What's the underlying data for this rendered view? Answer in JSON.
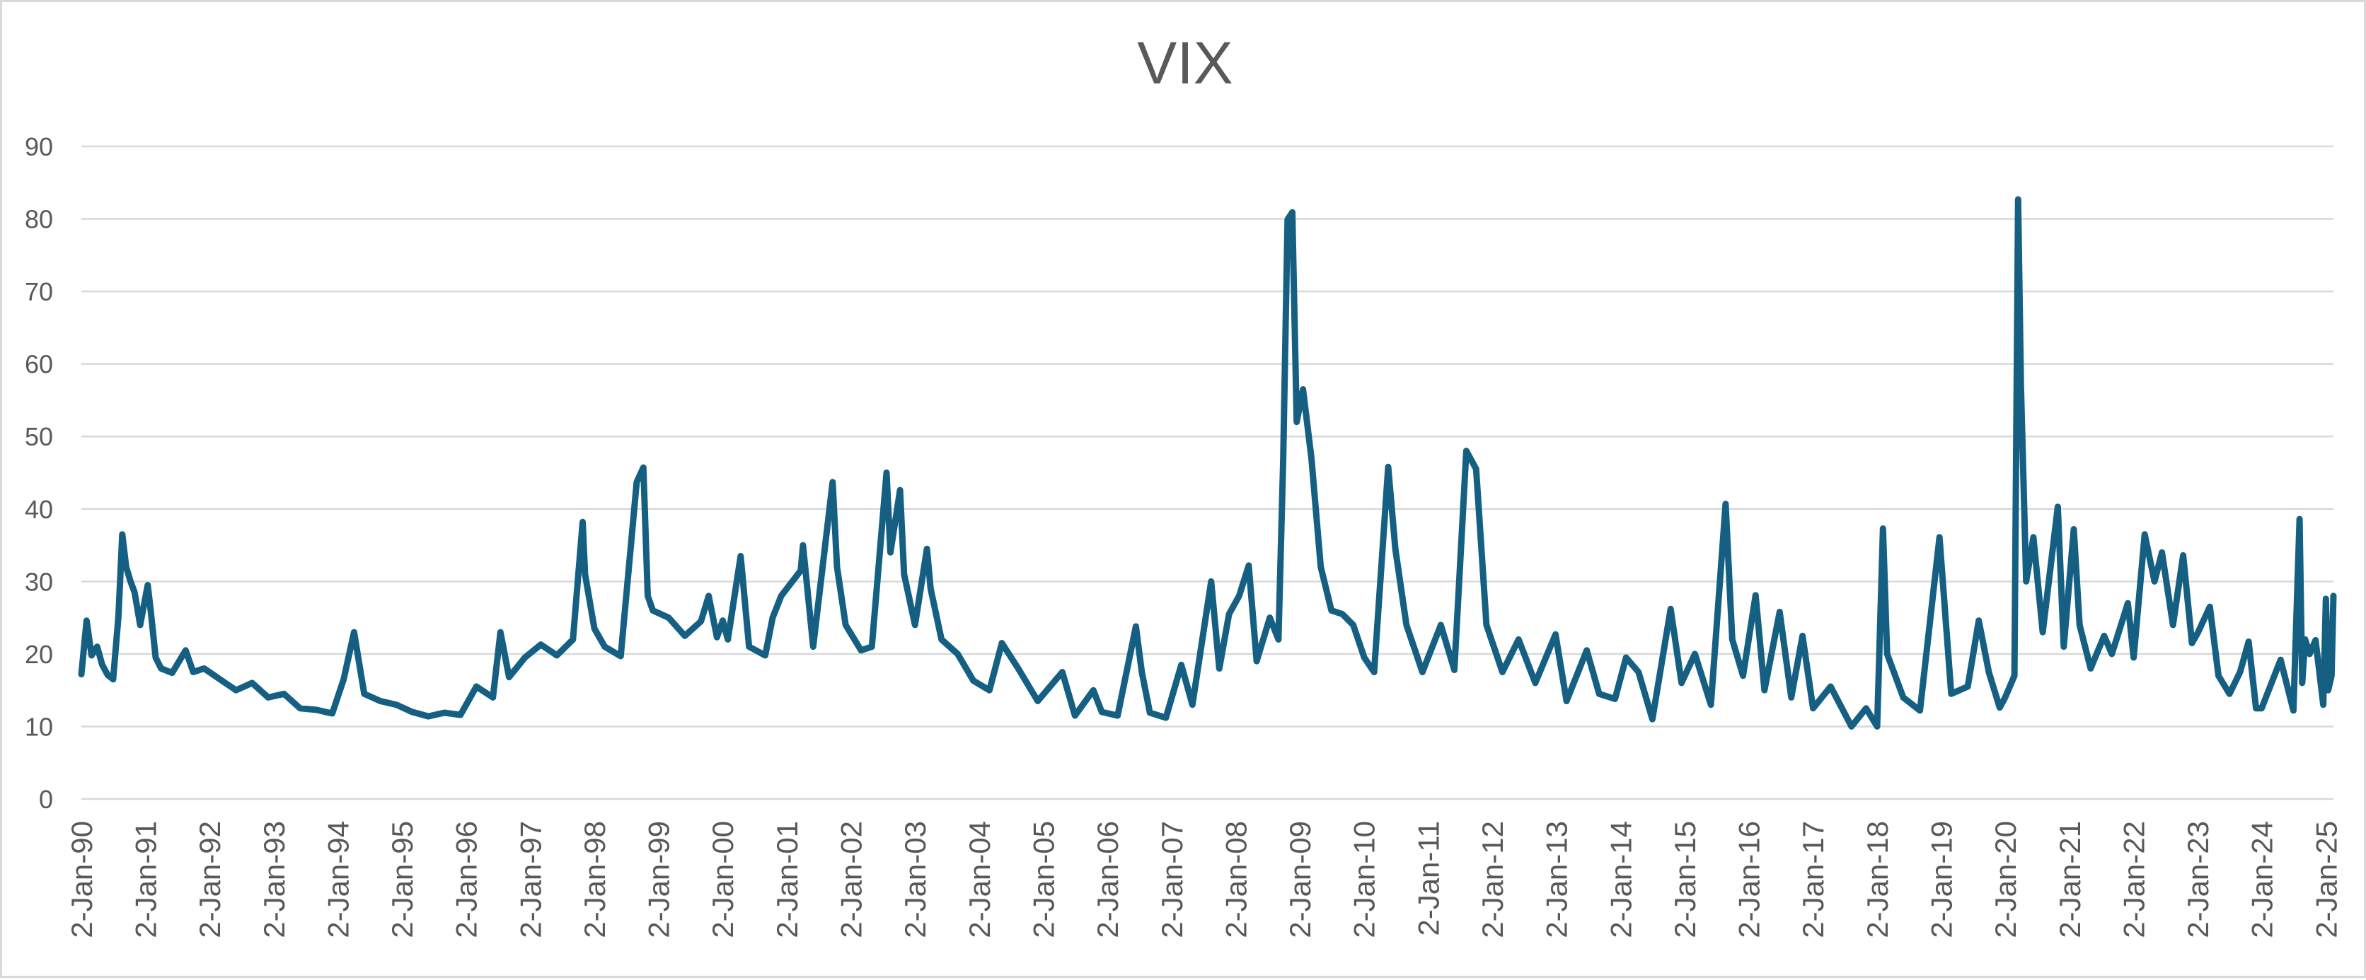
{
  "chart_data": {
    "type": "line",
    "title": "VIX",
    "xlabel": "",
    "ylabel": "",
    "ylim": [
      0,
      90
    ],
    "yticks": [
      0,
      10,
      20,
      30,
      40,
      50,
      60,
      70,
      80,
      90
    ],
    "grid": true,
    "legend": "none",
    "x_tick_labels": [
      "2-Jan-90",
      "2-Jan-91",
      "2-Jan-92",
      "2-Jan-93",
      "2-Jan-94",
      "2-Jan-95",
      "2-Jan-96",
      "2-Jan-97",
      "2-Jan-98",
      "2-Jan-99",
      "2-Jan-00",
      "2-Jan-01",
      "2-Jan-02",
      "2-Jan-03",
      "2-Jan-04",
      "2-Jan-05",
      "2-Jan-06",
      "2-Jan-07",
      "2-Jan-08",
      "2-Jan-09",
      "2-Jan-10",
      "2-Jan-11",
      "2-Jan-12",
      "2-Jan-13",
      "2-Jan-14",
      "2-Jan-15",
      "2-Jan-16",
      "2-Jan-17",
      "2-Jan-18",
      "2-Jan-19",
      "2-Jan-20",
      "2-Jan-21",
      "2-Jan-22",
      "2-Jan-23",
      "2-Jan-24",
      "2-Jan-25"
    ],
    "line_color": "#156082",
    "series": [
      {
        "x": [
          "1990-01-02",
          "1990-02-01",
          "1990-03-01",
          "1990-04-02",
          "1990-05-01",
          "1990-06-01",
          "1990-07-02",
          "1990-08-01",
          "1990-08-23",
          "1990-09-14",
          "1990-10-09",
          "1990-11-01",
          "1990-12-03",
          "1991-01-15",
          "1991-02-01",
          "1991-03-01",
          "1991-04-01",
          "1991-06-03",
          "1991-08-19",
          "1991-10-01",
          "1991-12-02",
          "1992-03-02",
          "1992-06-01",
          "1992-09-01",
          "1992-12-01",
          "1993-03-01",
          "1993-06-01",
          "1993-09-01",
          "1993-12-01",
          "1994-02-04",
          "1994-04-04",
          "1994-06-01",
          "1994-09-01",
          "1994-12-01",
          "1995-03-01",
          "1995-06-01",
          "1995-09-01",
          "1995-12-01",
          "1996-03-01",
          "1996-06-03",
          "1996-07-16",
          "1996-09-03",
          "1996-12-02",
          "1997-03-03",
          "1997-06-02",
          "1997-09-02",
          "1997-10-27",
          "1997-11-10",
          "1998-01-02",
          "1998-03-02",
          "1998-06-01",
          "1998-08-31",
          "1998-10-08",
          "1998-11-02",
          "1998-12-01",
          "1999-03-01",
          "1999-06-01",
          "1999-09-01",
          "1999-10-15",
          "1999-12-01",
          "2000-01-03",
          "2000-02-01",
          "2000-04-14",
          "2000-06-01",
          "2000-09-01",
          "2000-10-13",
          "2000-12-01",
          "2001-03-22",
          "2001-04-04",
          "2001-06-01",
          "2001-09-20",
          "2001-10-15",
          "2001-12-03",
          "2002-03-01",
          "2002-05-01",
          "2002-07-24",
          "2002-08-15",
          "2002-10-09",
          "2002-11-01",
          "2003-01-02",
          "2003-03-11",
          "2003-04-01",
          "2003-06-02",
          "2003-09-02",
          "2003-12-01",
          "2004-03-01",
          "2004-05-11",
          "2004-08-12",
          "2004-12-01",
          "2005-04-20",
          "2005-07-01",
          "2005-10-14",
          "2005-12-01",
          "2006-03-01",
          "2006-06-13",
          "2006-07-17",
          "2006-09-01",
          "2006-12-01",
          "2007-02-27",
          "2007-05-01",
          "2007-08-16",
          "2007-10-01",
          "2007-11-26",
          "2008-01-22",
          "2008-03-17",
          "2008-05-01",
          "2008-07-15",
          "2008-09-02",
          "2008-09-29",
          "2008-10-24",
          "2008-11-20",
          "2008-12-15",
          "2009-01-20",
          "2009-03-09",
          "2009-05-01",
          "2009-07-01",
          "2009-09-01",
          "2009-11-02",
          "2010-01-04",
          "2010-03-01",
          "2010-05-20",
          "2010-06-30",
          "2010-09-01",
          "2010-12-01",
          "2011-03-16",
          "2011-06-01",
          "2011-08-08",
          "2011-10-03",
          "2011-12-01",
          "2012-03-01",
          "2012-06-01",
          "2012-09-04",
          "2012-12-28",
          "2013-03-01",
          "2013-06-24",
          "2013-09-03",
          "2013-12-02",
          "2014-02-03",
          "2014-04-15",
          "2014-07-03",
          "2014-10-15",
          "2014-12-16",
          "2015-03-02",
          "2015-06-01",
          "2015-08-24",
          "2015-10-01",
          "2015-12-01",
          "2016-02-11",
          "2016-04-01",
          "2016-06-27",
          "2016-09-01",
          "2016-11-04",
          "2017-01-03",
          "2017-04-13",
          "2017-08-10",
          "2017-11-01",
          "2018-01-03",
          "2018-02-05",
          "2018-03-01",
          "2018-06-01",
          "2018-09-04",
          "2018-12-24",
          "2019-03-01",
          "2019-06-03",
          "2019-08-05",
          "2019-10-01",
          "2019-12-02",
          "2020-01-02",
          "2020-02-24",
          "2020-03-16",
          "2020-04-01",
          "2020-05-01",
          "2020-06-11",
          "2020-08-03",
          "2020-10-28",
          "2020-12-01",
          "2021-01-27",
          "2021-03-01",
          "2021-05-03",
          "2021-07-19",
          "2021-09-01",
          "2021-12-01",
          "2022-01-03",
          "2022-03-07",
          "2022-05-02",
          "2022-06-13",
          "2022-08-15",
          "2022-10-12",
          "2022-12-01",
          "2023-01-03",
          "2023-03-13",
          "2023-05-01",
          "2023-07-03",
          "2023-09-01",
          "2023-10-20",
          "2023-12-01",
          "2024-01-02",
          "2024-04-19",
          "2024-07-01",
          "2024-08-05",
          "2024-08-20",
          "2024-09-06",
          "2024-10-01",
          "2024-11-04",
          "2024-12-18",
          "2025-01-02",
          "2025-01-15",
          "2025-02-03",
          "2025-02-14"
        ],
        "y": [
          17.2,
          24.6,
          19.8,
          21.0,
          18.5,
          17.1,
          16.5,
          25.2,
          36.5,
          32.0,
          30.0,
          28.5,
          24.0,
          29.5,
          26.0,
          19.5,
          18.0,
          17.4,
          20.5,
          17.5,
          18.0,
          16.5,
          15.0,
          16.0,
          14.0,
          14.5,
          12.5,
          12.3,
          11.8,
          16.5,
          23.0,
          14.5,
          13.5,
          13.0,
          12.0,
          11.4,
          11.9,
          11.6,
          15.5,
          14.0,
          23.0,
          16.8,
          19.5,
          21.3,
          19.8,
          22.0,
          38.2,
          31.0,
          23.5,
          21.0,
          19.7,
          43.7,
          45.7,
          28.0,
          26.0,
          25.0,
          22.5,
          24.5,
          28.0,
          22.3,
          24.6,
          22.0,
          33.5,
          21.0,
          19.8,
          25.0,
          28.0,
          31.5,
          35.0,
          21.0,
          43.7,
          32.0,
          24.0,
          20.5,
          21.0,
          45.0,
          34.0,
          42.6,
          31.0,
          24.0,
          34.5,
          29.0,
          22.0,
          20.0,
          16.3,
          15.0,
          21.5,
          18.0,
          13.5,
          17.5,
          11.5,
          15.0,
          12.0,
          11.5,
          23.8,
          17.5,
          11.9,
          11.2,
          18.5,
          13.0,
          30.0,
          18.0,
          25.5,
          28.0,
          32.2,
          19.0,
          25.0,
          22.0,
          46.7,
          79.9,
          80.9,
          52.0,
          56.5,
          47.0,
          32.0,
          26.0,
          25.5,
          24.0,
          19.5,
          17.5,
          45.8,
          34.5,
          24.0,
          17.5,
          24.0,
          17.8,
          48.0,
          45.5,
          24.0,
          17.5,
          22.0,
          16.0,
          22.7,
          13.5,
          20.5,
          14.5,
          13.8,
          19.5,
          17.5,
          11.0,
          26.2,
          16.0,
          20.0,
          13.0,
          40.7,
          22.0,
          17.0,
          28.1,
          15.0,
          25.8,
          14.0,
          22.5,
          12.5,
          15.5,
          10.0,
          12.5,
          10.0,
          37.3,
          20.0,
          14.0,
          12.2,
          36.1,
          14.5,
          15.5,
          24.6,
          17.5,
          12.6,
          14.0,
          17.0,
          82.7,
          57.0,
          30.0,
          36.1,
          23.0,
          40.3,
          21.0,
          37.2,
          24.0,
          18.0,
          22.5,
          20.0,
          27.0,
          19.5,
          36.5,
          30.0,
          34.0,
          24.0,
          33.6,
          21.5,
          22.9,
          26.5,
          17.0,
          14.5,
          17.5,
          21.7,
          12.5,
          12.5,
          19.2,
          12.2,
          38.6,
          16.0,
          22.0,
          20.0,
          21.9,
          13.0,
          27.6,
          15.0,
          17.0,
          28.0
        ]
      }
    ]
  }
}
